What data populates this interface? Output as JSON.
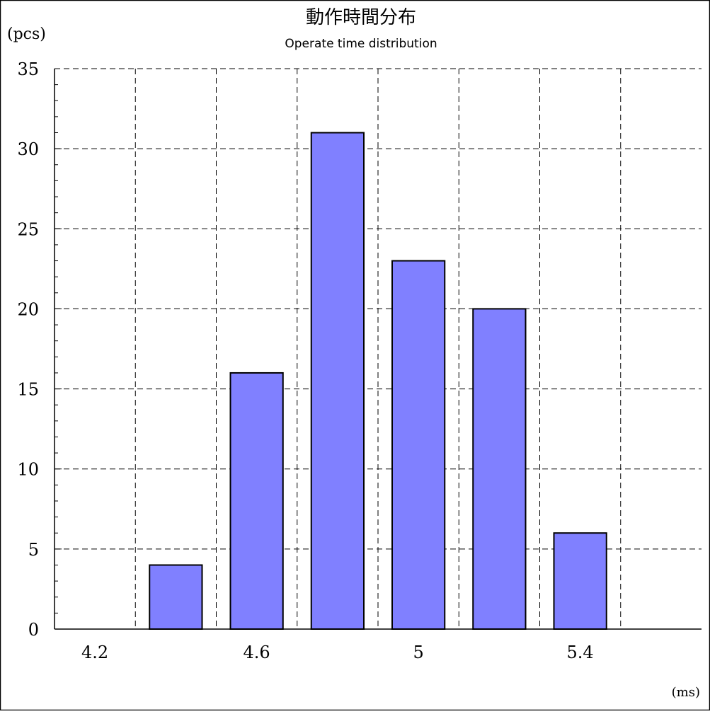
{
  "chart_data": {
    "type": "bar",
    "title": "動作時間分布",
    "subtitle": "Operate time distribution",
    "ylabel": "(pcs)",
    "xlabel": "(ms)",
    "x_tick_labels": [
      "4.2",
      "4.6",
      "5",
      "5.4"
    ],
    "x_ticks": [
      4.2,
      4.6,
      5.0,
      5.4
    ],
    "xlim": [
      4.1,
      5.7
    ],
    "ylim": [
      0,
      35
    ],
    "y_ticks": [
      0,
      5,
      10,
      15,
      20,
      25,
      30,
      35
    ],
    "y_tick_labels": [
      "0",
      "5",
      "10",
      "15",
      "20",
      "25",
      "30",
      "35"
    ],
    "x_gridlines": [
      4.3,
      4.5,
      4.7,
      4.9,
      5.1,
      5.3,
      5.5
    ],
    "bars": [
      {
        "x": 4.4,
        "value": 4
      },
      {
        "x": 4.6,
        "value": 16
      },
      {
        "x": 4.8,
        "value": 31
      },
      {
        "x": 5.0,
        "value": 23
      },
      {
        "x": 5.2,
        "value": 20
      },
      {
        "x": 5.4,
        "value": 6
      }
    ],
    "bar_width": 0.13,
    "grid": true,
    "colors": {
      "bar_fill": "#8080ff",
      "bar_stroke": "#000000",
      "grid": "#000000"
    }
  }
}
